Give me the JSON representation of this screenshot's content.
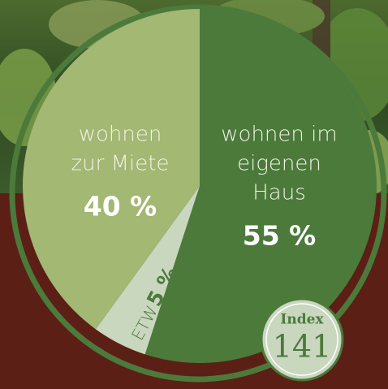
{
  "chart_data": {
    "type": "pie",
    "categories": [
      [
        "wohnen im",
        "eigenen",
        "Haus"
      ],
      [
        "ETW"
      ],
      [
        "wohnen",
        "zur Miete"
      ]
    ],
    "values": [
      55,
      5,
      40
    ],
    "value_labels": [
      "55 %",
      "5 %",
      "40 %"
    ],
    "colors": [
      "#4b7a3b",
      "#c9d7bf",
      "#a2b873"
    ],
    "badge": {
      "title": "Index",
      "value": 141
    }
  }
}
